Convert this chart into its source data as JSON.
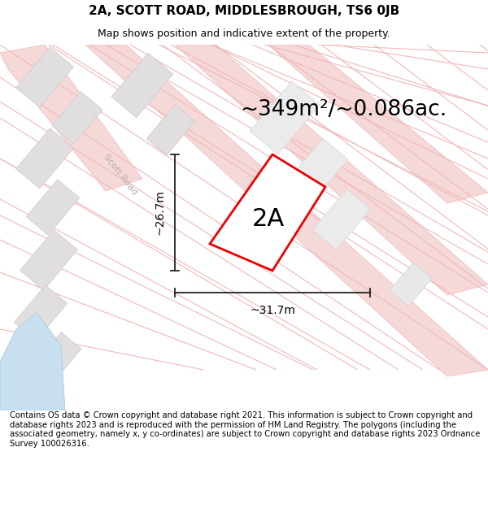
{
  "title_line1": "2A, SCOTT ROAD, MIDDLESBROUGH, TS6 0JB",
  "title_line2": "Map shows position and indicative extent of the property.",
  "area_text": "~349m²/~0.086ac.",
  "label_2a": "2A",
  "dim_horizontal": "~31.7m",
  "dim_vertical": "~26.7m",
  "street_label": "Scott Road",
  "footer_text": "Contains OS data © Crown copyright and database right 2021. This information is subject to Crown copyright and database rights 2023 and is reproduced with the permission of HM Land Registry. The polygons (including the associated geometry, namely x, y co-ordinates) are subject to Crown copyright and database rights 2023 Ordnance Survey 100026316.",
  "bg_color": "#ffffff",
  "map_bg": "#ffffff",
  "road_line_color": "#f0b8b8",
  "road_fill_color": "#f5d8d8",
  "building_fill": "#e0dede",
  "building_edge": "#d0c8c8",
  "property_outline_color": "#ee0000",
  "property_fill": "#ffffff",
  "dim_line_color": "#222222",
  "street_label_color": "#b8b0b0",
  "water_color": "#c8dff0",
  "title_fontsize": 11,
  "subtitle_fontsize": 9,
  "area_fontsize": 19,
  "label_fontsize": 22,
  "dim_fontsize": 10,
  "street_fontsize": 8,
  "footer_fontsize": 7.2
}
